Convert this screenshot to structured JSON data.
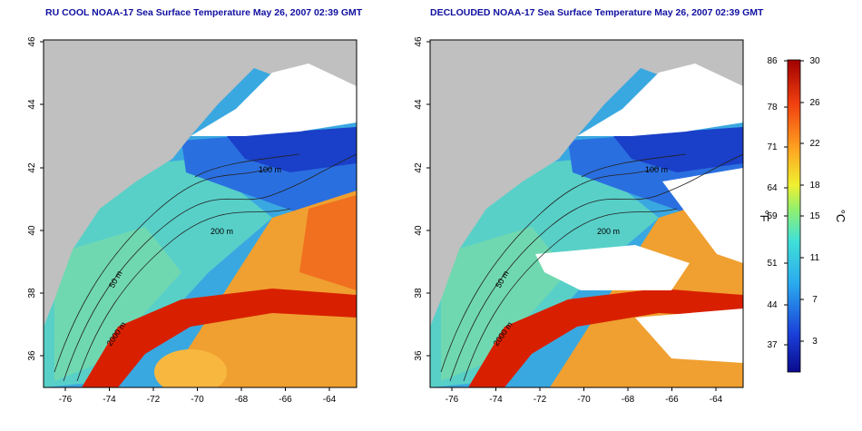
{
  "panels": [
    {
      "id": "left",
      "title": "RU COOL NOAA-17 Sea Surface Temperature May 26, 2007 02:39 GMT"
    },
    {
      "id": "right",
      "title": "DECLOUDED NOAA-17 Sea Surface Temperature May 26, 2007 02:39 GMT"
    }
  ],
  "axes": {
    "x_ticks": [
      "-76",
      "-74",
      "-72",
      "-70",
      "-68",
      "-66",
      "-64"
    ],
    "y_ticks": [
      "46",
      "44",
      "42",
      "40",
      "38",
      "36"
    ]
  },
  "contour_labels": [
    "50 m",
    "100 m",
    "200 m",
    "2000 m"
  ],
  "colorbar": {
    "fahrenheit_label": "°F",
    "celsius_label": "°C",
    "fahrenheit_ticks": [
      "86",
      "78",
      "71",
      "64",
      "59",
      "51",
      "44",
      "37"
    ],
    "celsius_ticks": [
      "30",
      "26",
      "22",
      "18",
      "15",
      "11",
      "7",
      "3"
    ]
  },
  "colors": {
    "land": "#c0c0c0",
    "cloud": "#ffffff",
    "title": "#1010a0",
    "cold": "#1a3fc8",
    "cool": "#3fb8e8",
    "mild": "#7ee0c0",
    "warm": "#f0a030",
    "hot": "#d82000"
  }
}
